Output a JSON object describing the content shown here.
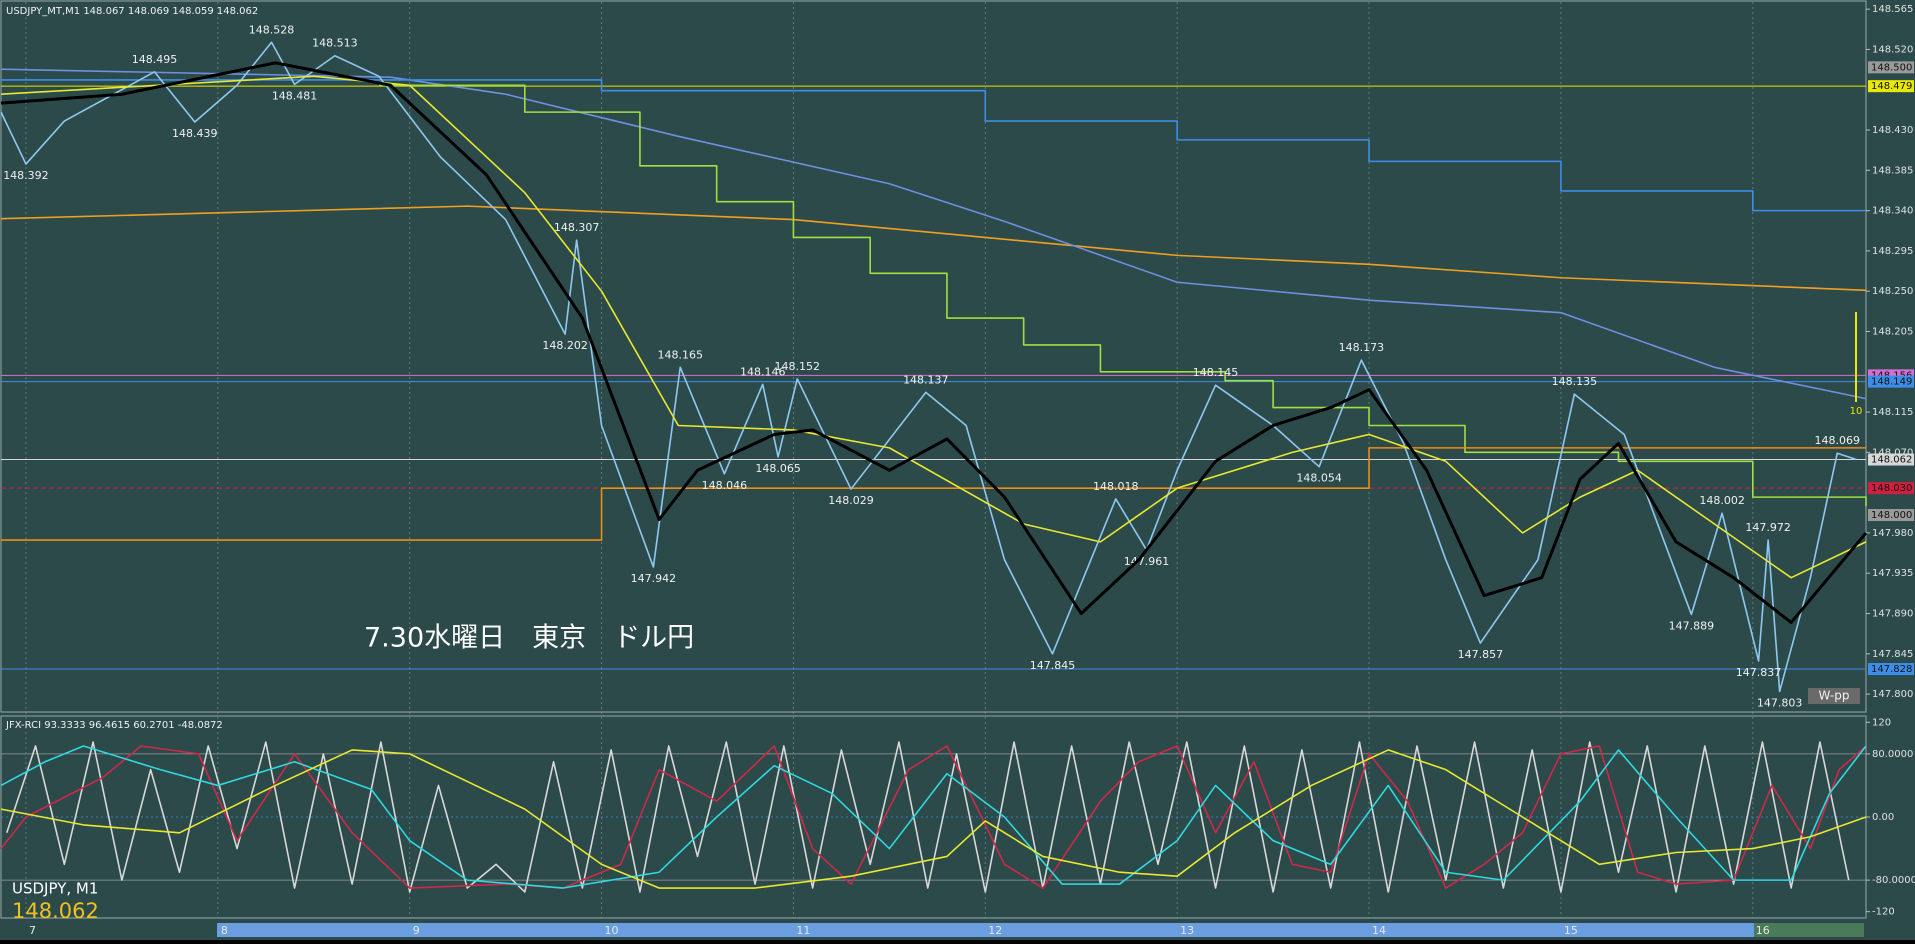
{
  "chart_data": [
    {
      "type": "line",
      "title": "USDJPY_MT,M1  148.067 148.069 148.059 148.062",
      "annotation": "7.30水曜日　東京　ドル円",
      "symbol": "USDJPY, M1",
      "last_price": "148.062",
      "markers": [
        "W-pp",
        "10"
      ],
      "xlim": [
        6.87,
        16.59
      ],
      "xticks": [
        7,
        8,
        9,
        10,
        11,
        12,
        13,
        14,
        15,
        16
      ],
      "ylim": [
        147.78,
        148.573
      ],
      "yticks": [
        {
          "value": 148.565,
          "label": "148.565"
        },
        {
          "value": 148.52,
          "label": "148.520"
        },
        {
          "value": 148.43,
          "label": "148.430"
        },
        {
          "value": 148.385,
          "label": "148.385"
        },
        {
          "value": 148.34,
          "label": "148.340"
        },
        {
          "value": 148.295,
          "label": "148.295"
        },
        {
          "value": 148.25,
          "label": "148.250"
        },
        {
          "value": 148.205,
          "label": "148.205"
        },
        {
          "value": 148.115,
          "label": "148.115"
        },
        {
          "value": 148.07,
          "label": "148.070"
        },
        {
          "value": 147.98,
          "label": "147.980"
        },
        {
          "value": 147.935,
          "label": "147.935"
        },
        {
          "value": 147.89,
          "label": "147.890"
        },
        {
          "value": 147.845,
          "label": "147.845"
        },
        {
          "value": 147.8,
          "label": "147.800"
        }
      ],
      "levels": [
        {
          "value": 148.5,
          "label": "148.500",
          "color": "#9a9a9a",
          "line": false
        },
        {
          "value": 148.479,
          "label": "148.479",
          "color": "#e8e800",
          "line": true
        },
        {
          "value": 148.156,
          "label": "148.156",
          "color": "#d070d0",
          "line": true
        },
        {
          "value": 148.149,
          "label": "148.149",
          "color": "#3c8ee8",
          "line": true
        },
        {
          "value": 148.062,
          "label": "148.062",
          "color": "#d8d8d8",
          "line": true
        },
        {
          "value": 148.03,
          "label": "148.030",
          "color": "#d02040",
          "line": true
        },
        {
          "value": 148.0,
          "label": "148.000",
          "color": "#9a9a9a",
          "line": false
        },
        {
          "value": 147.828,
          "label": "147.828",
          "color": "#3c8ee8",
          "line": true
        }
      ],
      "series": [
        {
          "color": "#f0a020",
          "x": [
            6.87,
            9.3,
            11,
            12,
            13,
            14,
            15,
            16.59
          ],
          "values": [
            148.331,
            148.345,
            148.33,
            148.31,
            148.29,
            148.28,
            148.265,
            148.251
          ]
        },
        {
          "color": "#6f8fe0",
          "x": [
            6.87,
            8.9,
            9.5,
            10.4,
            11.5,
            12.1,
            13.0,
            14.0,
            15.0,
            15.8,
            16.59
          ],
          "values": [
            148.498,
            148.489,
            148.47,
            148.423,
            148.37,
            148.328,
            148.26,
            148.24,
            148.226,
            148.165,
            148.13
          ]
        },
        {
          "color": "#3c8ee8",
          "step": true,
          "x": [
            6.87,
            10.0,
            12.0,
            13.0,
            14.0,
            15.0,
            16.0,
            16.59
          ],
          "values": [
            148.486,
            148.474,
            148.44,
            148.419,
            148.395,
            148.362,
            148.34,
            148.34
          ]
        },
        {
          "color": "#a0e040",
          "step": true,
          "x": [
            8.84,
            9.6,
            10.2,
            10.6,
            11.0,
            11.4,
            11.8,
            12.2,
            12.6,
            13.25,
            13.5,
            14.0,
            14.5,
            15.3,
            16.0,
            16.59
          ],
          "values": [
            148.48,
            148.45,
            148.39,
            148.35,
            148.31,
            148.27,
            148.22,
            148.19,
            148.16,
            148.15,
            148.12,
            148.1,
            148.07,
            148.06,
            148.02,
            148.01
          ]
        },
        {
          "color": "#f08c10",
          "step": true,
          "x": [
            6.87,
            10.0,
            14.0,
            16.59
          ],
          "values": [
            147.972,
            148.03,
            148.075,
            148.075
          ]
        },
        {
          "color": "#8fc8f0",
          "x": [
            6.87,
            7.0,
            7.2,
            7.67,
            7.88,
            8.1,
            8.28,
            8.4,
            8.61,
            8.84,
            9.16,
            9.5,
            9.81,
            9.87,
            10.0,
            10.27,
            10.41,
            10.64,
            10.84,
            10.92,
            11.02,
            11.3,
            11.69,
            11.9,
            12.1,
            12.35,
            12.68,
            12.84,
            13.0,
            13.2,
            13.5,
            13.74,
            13.96,
            14.18,
            14.4,
            14.58,
            14.88,
            15.07,
            15.33,
            15.68,
            15.84,
            16.03,
            16.08,
            16.14,
            16.3,
            16.44,
            16.54
          ],
          "values": [
            148.45,
            148.392,
            148.44,
            148.495,
            148.439,
            148.48,
            148.528,
            148.481,
            148.513,
            148.49,
            148.4,
            148.33,
            148.202,
            148.307,
            148.1,
            147.942,
            148.165,
            148.046,
            148.146,
            148.065,
            148.152,
            148.029,
            148.137,
            148.1,
            147.95,
            147.845,
            148.018,
            147.961,
            148.05,
            148.145,
            148.1,
            148.054,
            148.173,
            148.08,
            147.95,
            147.857,
            147.95,
            148.135,
            148.09,
            147.889,
            148.002,
            147.837,
            147.972,
            147.803,
            147.93,
            148.069,
            148.062
          ],
          "value_labels": [
            null,
            "148.392",
            null,
            "148.495",
            "148.439",
            null,
            "148.528",
            "148.481",
            "148.513",
            null,
            null,
            null,
            "148.202",
            "148.307",
            null,
            "147.942",
            "148.165",
            "148.046",
            "148.146",
            "148.065",
            "148.152",
            "148.029",
            "148.137",
            null,
            null,
            "147.845",
            "148.018",
            "147.961",
            null,
            "148.145",
            null,
            "148.054",
            "148.173",
            null,
            null,
            "147.857",
            null,
            "148.135",
            null,
            "147.889",
            "148.002",
            "147.837",
            "147.972",
            "147.803",
            null,
            "148.069",
            null
          ]
        },
        {
          "color": "#e8e830",
          "x": [
            6.87,
            8.5,
            9.0,
            9.6,
            10.0,
            10.4,
            11.0,
            11.5,
            12.2,
            12.6,
            13.0,
            13.6,
            14.0,
            14.4,
            14.8,
            15.1,
            15.4,
            15.8,
            16.2,
            16.59
          ],
          "values": [
            148.47,
            148.49,
            148.48,
            148.36,
            148.25,
            148.1,
            148.095,
            148.075,
            147.99,
            147.97,
            148.03,
            148.07,
            148.09,
            148.06,
            147.98,
            148.02,
            148.05,
            147.99,
            147.93,
            147.97
          ]
        },
        {
          "color": "#000000",
          "x": [
            6.87,
            7.5,
            8.3,
            8.9,
            9.4,
            9.9,
            10.3,
            10.5,
            10.9,
            11.1,
            11.5,
            11.8,
            12.1,
            12.5,
            12.8,
            13.2,
            13.5,
            13.8,
            14.0,
            14.3,
            14.6,
            14.9,
            15.1,
            15.3,
            15.6,
            15.9,
            16.2,
            16.59
          ],
          "values": [
            148.46,
            148.47,
            148.505,
            148.48,
            148.38,
            148.22,
            147.995,
            148.05,
            148.09,
            148.095,
            148.05,
            148.085,
            148.02,
            147.89,
            147.95,
            148.06,
            148.1,
            148.12,
            148.14,
            148.05,
            147.91,
            147.93,
            148.04,
            148.08,
            147.97,
            147.93,
            147.88,
            147.98
          ]
        }
      ]
    },
    {
      "type": "line",
      "title": "JFX-RCI 93.3333 96.4615 60.2701 -48.0872",
      "xlim": [
        6.87,
        16.59
      ],
      "ylim": [
        -128,
        128
      ],
      "yticks": [
        120,
        {
          "value": 80,
          "label": "80.0000"
        },
        {
          "value": 0,
          "label": "0.00"
        },
        {
          "value": -80,
          "label": "-80.0000"
        },
        -120
      ],
      "series": [
        {
          "color": "#d8d8d8",
          "x": [
            6.9,
            7.05,
            7.2,
            7.35,
            7.5,
            7.65,
            7.8,
            7.95,
            8.1,
            8.25,
            8.4,
            8.55,
            8.7,
            8.85,
            9.0,
            9.15,
            9.3,
            9.45,
            9.6,
            9.75,
            9.9,
            10.05,
            10.2,
            10.35,
            10.5,
            10.65,
            10.8,
            10.95,
            11.1,
            11.25,
            11.4,
            11.55,
            11.7,
            11.85,
            12.0,
            12.15,
            12.3,
            12.45,
            12.6,
            12.75,
            12.9,
            13.05,
            13.2,
            13.35,
            13.5,
            13.65,
            13.8,
            13.95,
            14.1,
            14.25,
            14.4,
            14.55,
            14.7,
            14.85,
            15.0,
            15.15,
            15.3,
            15.45,
            15.6,
            15.75,
            15.9,
            16.05,
            16.2,
            16.35,
            16.5
          ],
          "values": [
            -20,
            90,
            -60,
            95,
            -80,
            60,
            -70,
            90,
            -40,
            95,
            -90,
            80,
            -85,
            95,
            -95,
            40,
            -90,
            -60,
            -95,
            70,
            -90,
            85,
            -95,
            90,
            -50,
            95,
            -85,
            90,
            -90,
            85,
            -60,
            95,
            -90,
            80,
            -95,
            95,
            -90,
            90,
            -85,
            95,
            -60,
            95,
            -90,
            90,
            -95,
            85,
            -90,
            95,
            -95,
            90,
            -80,
            95,
            -90,
            85,
            -95,
            95,
            -70,
            90,
            -95,
            90,
            -85,
            95,
            -90,
            95,
            -80
          ]
        },
        {
          "color": "#d02848",
          "x": [
            6.87,
            7.0,
            7.4,
            7.6,
            7.9,
            8.1,
            8.4,
            8.7,
            9.0,
            9.5,
            9.8,
            10.1,
            10.3,
            10.6,
            10.9,
            11.1,
            11.3,
            11.6,
            11.8,
            12.1,
            12.3,
            12.6,
            12.8,
            13.0,
            13.2,
            13.4,
            13.6,
            13.8,
            14.0,
            14.2,
            14.4,
            14.6,
            14.8,
            15.0,
            15.2,
            15.4,
            15.6,
            15.9,
            16.1,
            16.3,
            16.45,
            16.59
          ],
          "values": [
            -40,
            0,
            50,
            90,
            80,
            -30,
            80,
            -20,
            -90,
            -85,
            -90,
            -60,
            60,
            20,
            90,
            -40,
            -85,
            60,
            90,
            -60,
            -90,
            20,
            70,
            90,
            -20,
            70,
            -60,
            -70,
            80,
            20,
            -90,
            -60,
            -20,
            80,
            90,
            -70,
            -85,
            -80,
            40,
            -40,
            60,
            90
          ]
        },
        {
          "color": "#30d8e0",
          "x": [
            6.87,
            7.1,
            7.3,
            7.7,
            8.0,
            8.4,
            8.8,
            9.0,
            9.3,
            9.8,
            10.3,
            10.6,
            10.9,
            11.2,
            11.5,
            11.8,
            12.1,
            12.4,
            12.7,
            13.0,
            13.2,
            13.5,
            13.8,
            14.1,
            14.4,
            14.7,
            15.1,
            15.3,
            15.6,
            15.9,
            16.2,
            16.4,
            16.59
          ],
          "values": [
            40,
            70,
            90,
            60,
            40,
            70,
            35,
            -30,
            -80,
            -90,
            -70,
            0,
            65,
            30,
            -40,
            55,
            0,
            -85,
            -85,
            -30,
            40,
            -30,
            -60,
            40,
            -70,
            -80,
            20,
            85,
            0,
            -80,
            -80,
            30,
            90
          ]
        },
        {
          "color": "#e8e830",
          "x": [
            6.87,
            7.3,
            7.8,
            8.3,
            8.7,
            9.0,
            9.6,
            10.0,
            10.3,
            10.8,
            11.3,
            11.8,
            12.0,
            12.3,
            12.7,
            13.0,
            13.3,
            13.7,
            14.1,
            14.4,
            14.8,
            15.2,
            15.6,
            16.0,
            16.3,
            16.59
          ],
          "values": [
            10,
            -10,
            -20,
            40,
            85,
            80,
            10,
            -60,
            -90,
            -90,
            -75,
            -50,
            -5,
            -50,
            -70,
            -75,
            -20,
            40,
            85,
            60,
            0,
            -60,
            -45,
            -40,
            -25,
            0
          ]
        }
      ]
    }
  ]
}
